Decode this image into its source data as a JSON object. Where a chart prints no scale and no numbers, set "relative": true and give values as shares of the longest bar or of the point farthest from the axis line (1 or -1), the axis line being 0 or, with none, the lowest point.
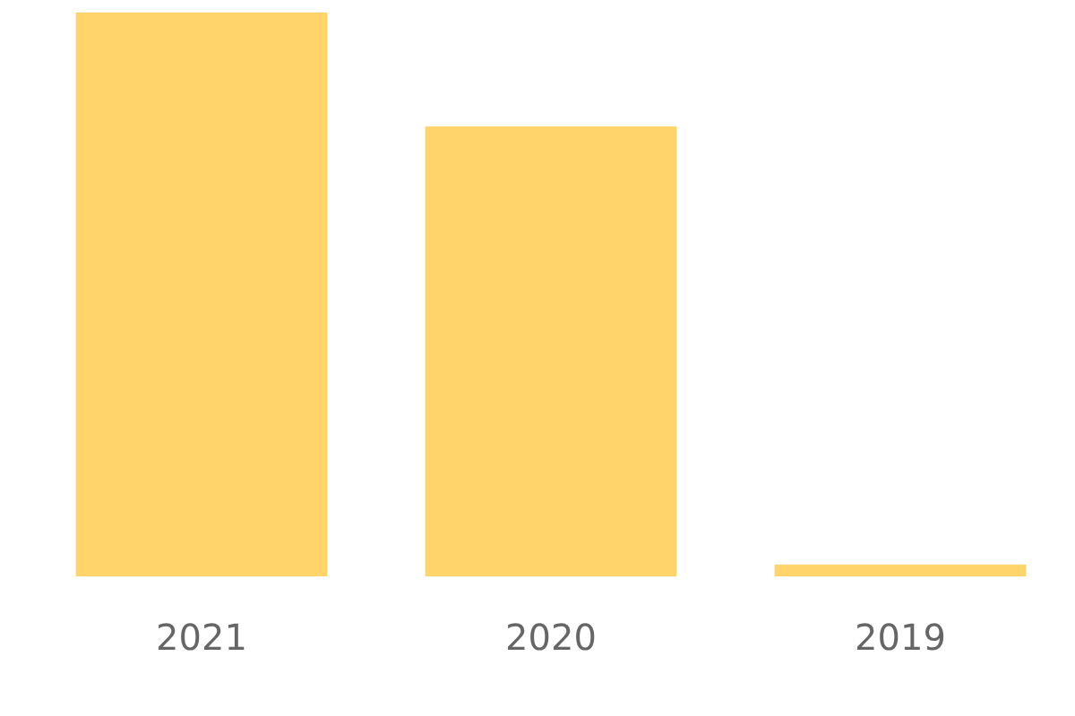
{
  "chart_data": {
    "type": "bar",
    "categories": [
      "2021",
      "2020",
      "2019"
    ],
    "values": [
      1,
      0.798,
      0.021
    ],
    "color": "#fed46b",
    "relative": true,
    "grid": false,
    "legend": false
  }
}
